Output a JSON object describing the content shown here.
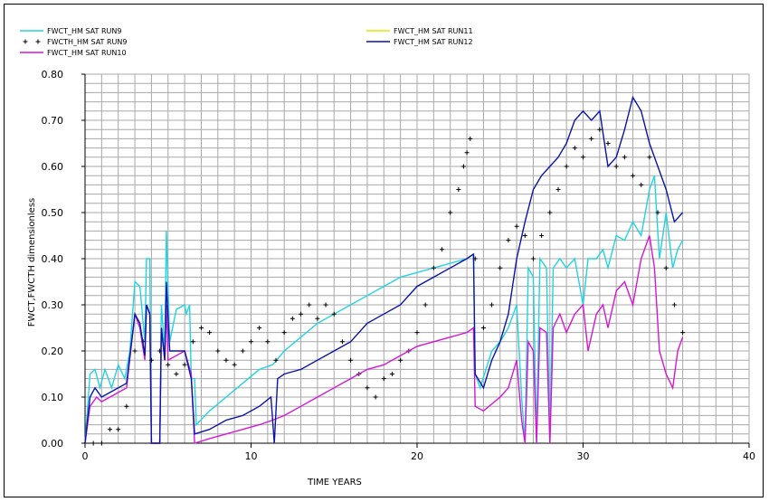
{
  "chart_data": {
    "type": "line",
    "xlabel": "TIME   YEARS",
    "ylabel": "FWCT,FWCTH   dimensionless",
    "xlim": [
      0,
      40
    ],
    "ylim": [
      0,
      0.8
    ],
    "xticks": [
      "0",
      "10",
      "20",
      "30",
      "40"
    ],
    "yticks": [
      "0.00",
      "0.10",
      "0.20",
      "0.30",
      "0.40",
      "0.50",
      "0.60",
      "0.70",
      "0.80"
    ],
    "grid": true,
    "legend_position": "top-left",
    "series": [
      {
        "name": "FWCT_HM SAT RUN9",
        "style": "line",
        "color": "#22d3e0",
        "points": [
          [
            0,
            0
          ],
          [
            0.3,
            0.15
          ],
          [
            0.6,
            0.16
          ],
          [
            0.9,
            0.12
          ],
          [
            1.2,
            0.16
          ],
          [
            1.6,
            0.12
          ],
          [
            2,
            0.17
          ],
          [
            2.4,
            0.14
          ],
          [
            2.7,
            0.2
          ],
          [
            3,
            0.35
          ],
          [
            3.3,
            0.34
          ],
          [
            3.6,
            0.22
          ],
          [
            3.7,
            0.4
          ],
          [
            3.9,
            0.4
          ],
          [
            4,
            0
          ],
          [
            4.5,
            0
          ],
          [
            4.6,
            0.3
          ],
          [
            4.8,
            0.2
          ],
          [
            4.9,
            0.46
          ],
          [
            5.1,
            0.22
          ],
          [
            5.5,
            0.29
          ],
          [
            6,
            0.3
          ],
          [
            6.1,
            0.28
          ],
          [
            6.3,
            0.3
          ],
          [
            6.4,
            0.14
          ],
          [
            6.6,
            0.14
          ],
          [
            6.7,
            0.04
          ],
          [
            7.5,
            0.07
          ],
          [
            8.5,
            0.1
          ],
          [
            9.5,
            0.13
          ],
          [
            10.5,
            0.16
          ],
          [
            11.3,
            0.17
          ],
          [
            12,
            0.2
          ],
          [
            13,
            0.23
          ],
          [
            14,
            0.26
          ],
          [
            15,
            0.28
          ],
          [
            16,
            0.3
          ],
          [
            17,
            0.32
          ],
          [
            18,
            0.34
          ],
          [
            19,
            0.36
          ],
          [
            20,
            0.37
          ],
          [
            21,
            0.38
          ],
          [
            22,
            0.39
          ],
          [
            23,
            0.4
          ],
          [
            23.4,
            0.41
          ],
          [
            23.5,
            0.15
          ],
          [
            23.8,
            0.12
          ],
          [
            24.5,
            0.2
          ],
          [
            25,
            0.22
          ],
          [
            25.5,
            0.25
          ],
          [
            26,
            0.3
          ],
          [
            26.3,
            0.1
          ],
          [
            26.5,
            0
          ],
          [
            26.7,
            0.38
          ],
          [
            27,
            0.36
          ],
          [
            27.2,
            0
          ],
          [
            27.4,
            0.4
          ],
          [
            27.8,
            0.38
          ],
          [
            28,
            0
          ],
          [
            28.2,
            0.38
          ],
          [
            28.6,
            0.4
          ],
          [
            29,
            0.38
          ],
          [
            29.5,
            0.4
          ],
          [
            30,
            0.3
          ],
          [
            30.3,
            0.4
          ],
          [
            30.8,
            0.4
          ],
          [
            31.2,
            0.42
          ],
          [
            31.5,
            0.38
          ],
          [
            32,
            0.45
          ],
          [
            32.5,
            0.44
          ],
          [
            33,
            0.48
          ],
          [
            33.5,
            0.45
          ],
          [
            34,
            0.55
          ],
          [
            34.3,
            0.58
          ],
          [
            34.6,
            0.4
          ],
          [
            35,
            0.5
          ],
          [
            35.4,
            0.38
          ],
          [
            35.7,
            0.42
          ],
          [
            36,
            0.44
          ]
        ]
      },
      {
        "name": "FWCTH_HM SAT RUN9",
        "style": "markers",
        "color": "#000000",
        "points": [
          [
            0.5,
            0
          ],
          [
            1,
            0
          ],
          [
            1.5,
            0.03
          ],
          [
            2,
            0.03
          ],
          [
            2.5,
            0.08
          ],
          [
            3,
            0.2
          ],
          [
            3.5,
            0.22
          ],
          [
            4,
            0.18
          ],
          [
            4.5,
            0.2
          ],
          [
            5,
            0.17
          ],
          [
            5.5,
            0.15
          ],
          [
            6,
            0.17
          ],
          [
            6.5,
            0.22
          ],
          [
            7,
            0.25
          ],
          [
            7.5,
            0.24
          ],
          [
            8,
            0.2
          ],
          [
            8.5,
            0.18
          ],
          [
            9,
            0.17
          ],
          [
            9.5,
            0.2
          ],
          [
            10,
            0.22
          ],
          [
            10.5,
            0.25
          ],
          [
            11,
            0.22
          ],
          [
            11.5,
            0.18
          ],
          [
            12,
            0.24
          ],
          [
            12.5,
            0.27
          ],
          [
            13,
            0.28
          ],
          [
            13.5,
            0.3
          ],
          [
            14,
            0.27
          ],
          [
            14.5,
            0.3
          ],
          [
            15,
            0.28
          ],
          [
            15.5,
            0.22
          ],
          [
            16,
            0.18
          ],
          [
            16.5,
            0.15
          ],
          [
            17,
            0.12
          ],
          [
            17.5,
            0.1
          ],
          [
            18,
            0.14
          ],
          [
            18.5,
            0.15
          ],
          [
            19,
            0.18
          ],
          [
            19.5,
            0.2
          ],
          [
            20,
            0.24
          ],
          [
            20.5,
            0.3
          ],
          [
            21,
            0.38
          ],
          [
            21.5,
            0.42
          ],
          [
            22,
            0.5
          ],
          [
            22.5,
            0.55
          ],
          [
            22.8,
            0.6
          ],
          [
            23,
            0.63
          ],
          [
            23.2,
            0.66
          ],
          [
            23.5,
            0.4
          ],
          [
            24,
            0.25
          ],
          [
            24.5,
            0.3
          ],
          [
            25,
            0.38
          ],
          [
            25.5,
            0.44
          ],
          [
            26,
            0.47
          ],
          [
            26.5,
            0.45
          ],
          [
            27,
            0.4
          ],
          [
            27.5,
            0.45
          ],
          [
            28,
            0.5
          ],
          [
            28.5,
            0.55
          ],
          [
            29,
            0.6
          ],
          [
            29.5,
            0.64
          ],
          [
            30,
            0.62
          ],
          [
            30.5,
            0.66
          ],
          [
            31,
            0.68
          ],
          [
            31.5,
            0.65
          ],
          [
            32,
            0.6
          ],
          [
            32.5,
            0.62
          ],
          [
            33,
            0.58
          ],
          [
            33.5,
            0.56
          ],
          [
            34,
            0.62
          ],
          [
            34.5,
            0.5
          ],
          [
            35,
            0.38
          ],
          [
            35.5,
            0.3
          ],
          [
            36,
            0.24
          ]
        ]
      },
      {
        "name": "FWCT_HM SAT RUN10",
        "style": "line",
        "color": "#d417d4",
        "points": [
          [
            0,
            0
          ],
          [
            0.3,
            0.08
          ],
          [
            0.7,
            0.1
          ],
          [
            1,
            0.09
          ],
          [
            1.5,
            0.1
          ],
          [
            2,
            0.11
          ],
          [
            2.5,
            0.12
          ],
          [
            3,
            0.28
          ],
          [
            3.3,
            0.25
          ],
          [
            3.6,
            0.18
          ],
          [
            3.7,
            0.3
          ],
          [
            3.9,
            0.28
          ],
          [
            4,
            0
          ],
          [
            4.5,
            0
          ],
          [
            4.6,
            0.25
          ],
          [
            4.8,
            0.18
          ],
          [
            4.9,
            0.3
          ],
          [
            5,
            0.18
          ],
          [
            6,
            0.2
          ],
          [
            6.4,
            0.15
          ],
          [
            6.6,
            0
          ],
          [
            7.5,
            0.01
          ],
          [
            8.5,
            0.02
          ],
          [
            9.5,
            0.03
          ],
          [
            10.5,
            0.04
          ],
          [
            11.3,
            0.05
          ],
          [
            12,
            0.06
          ],
          [
            13,
            0.08
          ],
          [
            14,
            0.1
          ],
          [
            15,
            0.12
          ],
          [
            16,
            0.14
          ],
          [
            17,
            0.16
          ],
          [
            18,
            0.17
          ],
          [
            19,
            0.19
          ],
          [
            20,
            0.21
          ],
          [
            21,
            0.22
          ],
          [
            22,
            0.23
          ],
          [
            23,
            0.24
          ],
          [
            23.4,
            0.25
          ],
          [
            23.5,
            0.08
          ],
          [
            24,
            0.07
          ],
          [
            25,
            0.1
          ],
          [
            25.5,
            0.12
          ],
          [
            26,
            0.18
          ],
          [
            26.3,
            0.05
          ],
          [
            26.5,
            0
          ],
          [
            26.7,
            0.22
          ],
          [
            27,
            0.2
          ],
          [
            27.2,
            0
          ],
          [
            27.4,
            0.25
          ],
          [
            27.8,
            0.24
          ],
          [
            28,
            0
          ],
          [
            28.2,
            0.25
          ],
          [
            28.6,
            0.28
          ],
          [
            29,
            0.24
          ],
          [
            29.5,
            0.28
          ],
          [
            30,
            0.3
          ],
          [
            30.3,
            0.2
          ],
          [
            30.8,
            0.28
          ],
          [
            31.2,
            0.3
          ],
          [
            31.5,
            0.25
          ],
          [
            32,
            0.33
          ],
          [
            32.5,
            0.35
          ],
          [
            33,
            0.3
          ],
          [
            33.5,
            0.4
          ],
          [
            34,
            0.45
          ],
          [
            34.3,
            0.38
          ],
          [
            34.6,
            0.2
          ],
          [
            35,
            0.15
          ],
          [
            35.4,
            0.12
          ],
          [
            35.7,
            0.2
          ],
          [
            36,
            0.23
          ]
        ]
      },
      {
        "name": "FWCT_HM SAT RUN11",
        "style": "line",
        "color": "#e6e600",
        "points": []
      },
      {
        "name": "FWCT_HM SAT RUN12",
        "style": "line",
        "color": "#0a14a8",
        "points": [
          [
            0,
            0
          ],
          [
            0.3,
            0.1
          ],
          [
            0.6,
            0.12
          ],
          [
            1,
            0.1
          ],
          [
            1.5,
            0.11
          ],
          [
            2,
            0.12
          ],
          [
            2.5,
            0.13
          ],
          [
            3,
            0.28
          ],
          [
            3.3,
            0.26
          ],
          [
            3.6,
            0.19
          ],
          [
            3.7,
            0.3
          ],
          [
            3.9,
            0.28
          ],
          [
            4,
            0
          ],
          [
            4.5,
            0
          ],
          [
            4.6,
            0.25
          ],
          [
            4.8,
            0.18
          ],
          [
            4.9,
            0.35
          ],
          [
            5.1,
            0.2
          ],
          [
            6,
            0.2
          ],
          [
            6.4,
            0.14
          ],
          [
            6.6,
            0.02
          ],
          [
            7.5,
            0.03
          ],
          [
            8.5,
            0.05
          ],
          [
            9.5,
            0.06
          ],
          [
            10.5,
            0.08
          ],
          [
            11.2,
            0.1
          ],
          [
            11.4,
            0
          ],
          [
            11.6,
            0.14
          ],
          [
            12,
            0.15
          ],
          [
            13,
            0.16
          ],
          [
            14,
            0.18
          ],
          [
            15,
            0.2
          ],
          [
            16,
            0.22
          ],
          [
            17,
            0.26
          ],
          [
            18,
            0.28
          ],
          [
            19,
            0.3
          ],
          [
            20,
            0.34
          ],
          [
            21,
            0.36
          ],
          [
            22,
            0.38
          ],
          [
            23,
            0.4
          ],
          [
            23.4,
            0.41
          ],
          [
            23.5,
            0.15
          ],
          [
            24,
            0.12
          ],
          [
            24.5,
            0.18
          ],
          [
            25,
            0.22
          ],
          [
            25.5,
            0.28
          ],
          [
            26,
            0.4
          ],
          [
            26.5,
            0.48
          ],
          [
            27,
            0.55
          ],
          [
            27.5,
            0.58
          ],
          [
            28,
            0.6
          ],
          [
            28.5,
            0.62
          ],
          [
            29,
            0.65
          ],
          [
            29.5,
            0.7
          ],
          [
            30,
            0.72
          ],
          [
            30.5,
            0.7
          ],
          [
            31,
            0.72
          ],
          [
            31.5,
            0.6
          ],
          [
            32,
            0.62
          ],
          [
            32.5,
            0.68
          ],
          [
            33,
            0.75
          ],
          [
            33.5,
            0.72
          ],
          [
            34,
            0.65
          ],
          [
            34.5,
            0.6
          ],
          [
            35,
            0.55
          ],
          [
            35.5,
            0.48
          ],
          [
            36,
            0.5
          ]
        ]
      }
    ]
  }
}
